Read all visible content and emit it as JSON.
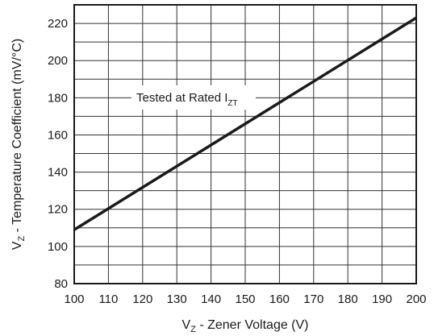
{
  "chart_data": {
    "type": "line",
    "title": "",
    "xlabel": {
      "main": "V",
      "sub": "Z",
      "rest": " - Zener Voltage (V)"
    },
    "ylabel": {
      "main": "V",
      "sub": "Z",
      "rest": " - Temperature Coefficient (mV/°C)"
    },
    "xlim": [
      100,
      200
    ],
    "ylim": [
      80,
      230
    ],
    "grid": true,
    "x_ticks": [
      100,
      110,
      120,
      130,
      140,
      150,
      160,
      170,
      180,
      190,
      200
    ],
    "y_ticks": [
      80,
      100,
      120,
      140,
      160,
      180,
      200,
      220
    ],
    "series": [
      {
        "color": "#1a1a1a",
        "x": [
          100,
          200
        ],
        "y": [
          109,
          223
        ]
      }
    ],
    "annotation": {
      "main": "Tested at Rated I",
      "sub": "ZT"
    }
  }
}
